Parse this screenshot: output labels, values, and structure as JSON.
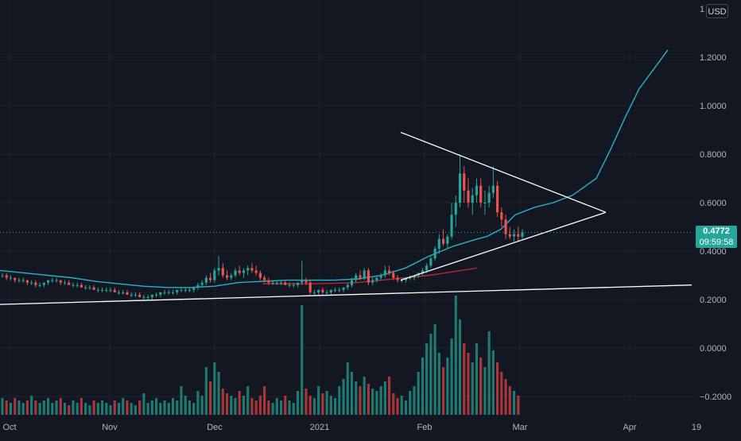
{
  "scale": {
    "currency": "USD",
    "top_partial": "1"
  },
  "price_label": {
    "price": "0.4772",
    "countdown": "09:59:58"
  },
  "chart_data": {
    "type": "candlestick",
    "y_ticks": [
      "1.2000",
      "1.0000",
      "0.8000",
      "0.6000",
      "0.4000",
      "0.2000",
      "0.0000",
      "−0.2000"
    ],
    "y_tick_values": [
      1.2,
      1.0,
      0.8,
      0.6,
      0.4,
      0.2,
      0.0,
      -0.2
    ],
    "x_ticks": [
      "Oct",
      "Nov",
      "Dec",
      "2021",
      "Feb",
      "Mar",
      "Apr",
      "19"
    ],
    "last_price": 0.4772,
    "ylim": [
      -0.25,
      1.35
    ],
    "grid": true,
    "colors": {
      "background": "#131722",
      "grid": "#1f2330",
      "up": "#26a69a",
      "down": "#ef5350",
      "ma_fast": "#2ab0c9",
      "ma_slow": "#b22833",
      "trendline": "#ffffff",
      "volume_up": "#1f7a70",
      "volume_down": "#a8373a",
      "price_line": "#26a69a"
    },
    "candles": [
      [
        0.3,
        0.31,
        0.29,
        0.3
      ],
      [
        0.3,
        0.31,
        0.28,
        0.29
      ],
      [
        0.29,
        0.3,
        0.28,
        0.29
      ],
      [
        0.29,
        0.29,
        0.27,
        0.28
      ],
      [
        0.28,
        0.29,
        0.27,
        0.28
      ],
      [
        0.28,
        0.29,
        0.27,
        0.28
      ],
      [
        0.28,
        0.28,
        0.26,
        0.27
      ],
      [
        0.27,
        0.28,
        0.26,
        0.27
      ],
      [
        0.27,
        0.28,
        0.25,
        0.26
      ],
      [
        0.26,
        0.27,
        0.25,
        0.26
      ],
      [
        0.26,
        0.27,
        0.25,
        0.27
      ],
      [
        0.27,
        0.28,
        0.26,
        0.28
      ],
      [
        0.28,
        0.29,
        0.27,
        0.28
      ],
      [
        0.28,
        0.29,
        0.27,
        0.28
      ],
      [
        0.28,
        0.28,
        0.26,
        0.27
      ],
      [
        0.27,
        0.28,
        0.26,
        0.27
      ],
      [
        0.27,
        0.28,
        0.26,
        0.26
      ],
      [
        0.26,
        0.27,
        0.25,
        0.26
      ],
      [
        0.26,
        0.27,
        0.25,
        0.26
      ],
      [
        0.26,
        0.27,
        0.25,
        0.25
      ],
      [
        0.25,
        0.26,
        0.24,
        0.25
      ],
      [
        0.25,
        0.26,
        0.24,
        0.25
      ],
      [
        0.25,
        0.26,
        0.24,
        0.24
      ],
      [
        0.24,
        0.25,
        0.23,
        0.24
      ],
      [
        0.24,
        0.25,
        0.23,
        0.24
      ],
      [
        0.24,
        0.25,
        0.23,
        0.24
      ],
      [
        0.24,
        0.25,
        0.23,
        0.24
      ],
      [
        0.24,
        0.25,
        0.23,
        0.23
      ],
      [
        0.23,
        0.24,
        0.22,
        0.23
      ],
      [
        0.23,
        0.24,
        0.22,
        0.23
      ],
      [
        0.23,
        0.24,
        0.22,
        0.22
      ],
      [
        0.22,
        0.23,
        0.21,
        0.22
      ],
      [
        0.22,
        0.23,
        0.21,
        0.22
      ],
      [
        0.22,
        0.23,
        0.21,
        0.21
      ],
      [
        0.21,
        0.22,
        0.2,
        0.21
      ],
      [
        0.21,
        0.22,
        0.2,
        0.21
      ],
      [
        0.21,
        0.22,
        0.2,
        0.22
      ],
      [
        0.22,
        0.23,
        0.21,
        0.22
      ],
      [
        0.22,
        0.23,
        0.21,
        0.23
      ],
      [
        0.23,
        0.24,
        0.22,
        0.23
      ],
      [
        0.23,
        0.24,
        0.22,
        0.23
      ],
      [
        0.23,
        0.24,
        0.22,
        0.23
      ],
      [
        0.23,
        0.24,
        0.22,
        0.24
      ],
      [
        0.24,
        0.25,
        0.23,
        0.24
      ],
      [
        0.24,
        0.25,
        0.23,
        0.24
      ],
      [
        0.24,
        0.25,
        0.23,
        0.24
      ],
      [
        0.24,
        0.25,
        0.23,
        0.25
      ],
      [
        0.25,
        0.27,
        0.24,
        0.26
      ],
      [
        0.26,
        0.28,
        0.25,
        0.27
      ],
      [
        0.27,
        0.3,
        0.26,
        0.29
      ],
      [
        0.29,
        0.31,
        0.27,
        0.28
      ],
      [
        0.28,
        0.33,
        0.27,
        0.32
      ],
      [
        0.32,
        0.38,
        0.3,
        0.33
      ],
      [
        0.33,
        0.35,
        0.29,
        0.3
      ],
      [
        0.3,
        0.32,
        0.28,
        0.29
      ],
      [
        0.29,
        0.31,
        0.28,
        0.3
      ],
      [
        0.3,
        0.33,
        0.29,
        0.32
      ],
      [
        0.32,
        0.34,
        0.3,
        0.31
      ],
      [
        0.31,
        0.33,
        0.29,
        0.32
      ],
      [
        0.32,
        0.34,
        0.3,
        0.33
      ],
      [
        0.33,
        0.35,
        0.31,
        0.32
      ],
      [
        0.32,
        0.34,
        0.3,
        0.31
      ],
      [
        0.31,
        0.32,
        0.28,
        0.29
      ],
      [
        0.29,
        0.3,
        0.27,
        0.28
      ],
      [
        0.28,
        0.29,
        0.26,
        0.27
      ],
      [
        0.27,
        0.28,
        0.26,
        0.27
      ],
      [
        0.27,
        0.28,
        0.26,
        0.27
      ],
      [
        0.27,
        0.28,
        0.26,
        0.27
      ],
      [
        0.27,
        0.28,
        0.26,
        0.26
      ],
      [
        0.26,
        0.27,
        0.25,
        0.26
      ],
      [
        0.26,
        0.27,
        0.25,
        0.26
      ],
      [
        0.26,
        0.27,
        0.25,
        0.27
      ],
      [
        0.27,
        0.36,
        0.26,
        0.28
      ],
      [
        0.28,
        0.29,
        0.26,
        0.27
      ],
      [
        0.27,
        0.28,
        0.22,
        0.23
      ],
      [
        0.23,
        0.24,
        0.22,
        0.23
      ],
      [
        0.23,
        0.24,
        0.22,
        0.24
      ],
      [
        0.24,
        0.25,
        0.22,
        0.23
      ],
      [
        0.23,
        0.24,
        0.22,
        0.23
      ],
      [
        0.23,
        0.24,
        0.22,
        0.24
      ],
      [
        0.24,
        0.25,
        0.23,
        0.24
      ],
      [
        0.24,
        0.25,
        0.23,
        0.24
      ],
      [
        0.24,
        0.25,
        0.23,
        0.25
      ],
      [
        0.25,
        0.27,
        0.24,
        0.26
      ],
      [
        0.26,
        0.29,
        0.25,
        0.28
      ],
      [
        0.28,
        0.31,
        0.27,
        0.3
      ],
      [
        0.3,
        0.32,
        0.28,
        0.29
      ],
      [
        0.29,
        0.33,
        0.28,
        0.32
      ],
      [
        0.32,
        0.33,
        0.26,
        0.27
      ],
      [
        0.27,
        0.29,
        0.26,
        0.28
      ],
      [
        0.28,
        0.3,
        0.27,
        0.29
      ],
      [
        0.29,
        0.31,
        0.28,
        0.3
      ],
      [
        0.3,
        0.34,
        0.29,
        0.32
      ],
      [
        0.32,
        0.34,
        0.3,
        0.31
      ],
      [
        0.31,
        0.32,
        0.28,
        0.29
      ],
      [
        0.29,
        0.3,
        0.27,
        0.28
      ],
      [
        0.28,
        0.29,
        0.27,
        0.28
      ],
      [
        0.28,
        0.29,
        0.27,
        0.29
      ],
      [
        0.29,
        0.3,
        0.28,
        0.29
      ],
      [
        0.29,
        0.3,
        0.28,
        0.3
      ],
      [
        0.3,
        0.31,
        0.29,
        0.31
      ],
      [
        0.31,
        0.33,
        0.3,
        0.32
      ],
      [
        0.32,
        0.35,
        0.31,
        0.34
      ],
      [
        0.34,
        0.38,
        0.33,
        0.37
      ],
      [
        0.37,
        0.42,
        0.36,
        0.41
      ],
      [
        0.41,
        0.47,
        0.39,
        0.45
      ],
      [
        0.45,
        0.49,
        0.42,
        0.43
      ],
      [
        0.43,
        0.47,
        0.41,
        0.46
      ],
      [
        0.46,
        0.6,
        0.45,
        0.55
      ],
      [
        0.55,
        0.63,
        0.5,
        0.6
      ],
      [
        0.6,
        0.8,
        0.58,
        0.72
      ],
      [
        0.72,
        0.75,
        0.6,
        0.65
      ],
      [
        0.65,
        0.7,
        0.58,
        0.6
      ],
      [
        0.6,
        0.66,
        0.55,
        0.63
      ],
      [
        0.63,
        0.7,
        0.6,
        0.67
      ],
      [
        0.67,
        0.7,
        0.58,
        0.6
      ],
      [
        0.6,
        0.65,
        0.55,
        0.6
      ],
      [
        0.6,
        0.67,
        0.58,
        0.64
      ],
      [
        0.64,
        0.75,
        0.62,
        0.67
      ],
      [
        0.67,
        0.69,
        0.54,
        0.56
      ],
      [
        0.56,
        0.58,
        0.5,
        0.53
      ],
      [
        0.53,
        0.55,
        0.45,
        0.47
      ],
      [
        0.47,
        0.5,
        0.45,
        0.46
      ],
      [
        0.46,
        0.49,
        0.44,
        0.47
      ],
      [
        0.47,
        0.5,
        0.44,
        0.46
      ],
      [
        0.46,
        0.49,
        0.45,
        0.477
      ]
    ],
    "volume": [
      0.07,
      0.06,
      0.05,
      0.07,
      0.06,
      0.05,
      0.06,
      0.08,
      0.06,
      0.05,
      0.06,
      0.07,
      0.05,
      0.06,
      0.07,
      0.05,
      0.04,
      0.06,
      0.05,
      0.07,
      0.05,
      0.04,
      0.06,
      0.05,
      0.06,
      0.05,
      0.04,
      0.06,
      0.05,
      0.07,
      0.06,
      0.05,
      0.04,
      0.06,
      0.09,
      0.05,
      0.06,
      0.07,
      0.05,
      0.06,
      0.05,
      0.07,
      0.06,
      0.12,
      0.08,
      0.06,
      0.05,
      0.1,
      0.08,
      0.2,
      0.14,
      0.22,
      0.18,
      0.11,
      0.09,
      0.08,
      0.07,
      0.1,
      0.08,
      0.12,
      0.07,
      0.06,
      0.08,
      0.12,
      0.06,
      0.05,
      0.07,
      0.06,
      0.08,
      0.06,
      0.05,
      0.1,
      0.46,
      0.11,
      0.08,
      0.07,
      0.12,
      0.09,
      0.1,
      0.08,
      0.07,
      0.12,
      0.15,
      0.22,
      0.18,
      0.14,
      0.12,
      0.16,
      0.13,
      0.11,
      0.1,
      0.12,
      0.14,
      0.16,
      0.09,
      0.07,
      0.08,
      0.06,
      0.1,
      0.12,
      0.18,
      0.24,
      0.3,
      0.34,
      0.38,
      0.26,
      0.2,
      0.24,
      0.32,
      0.5,
      0.4,
      0.3,
      0.26,
      0.22,
      0.3,
      0.24,
      0.2,
      0.35,
      0.27,
      0.22,
      0.18,
      0.15,
      0.12,
      0.1,
      0.08
    ],
    "ma_fast": [
      [
        0.0,
        0.32
      ],
      [
        0.05,
        0.31
      ],
      [
        0.1,
        0.3
      ],
      [
        0.15,
        0.29
      ],
      [
        0.2,
        0.275
      ],
      [
        0.25,
        0.265
      ],
      [
        0.3,
        0.255
      ],
      [
        0.35,
        0.25
      ],
      [
        0.4,
        0.25
      ],
      [
        0.45,
        0.255
      ],
      [
        0.5,
        0.27
      ],
      [
        0.55,
        0.275
      ],
      [
        0.6,
        0.28
      ],
      [
        0.65,
        0.28
      ],
      [
        0.7,
        0.28
      ],
      [
        0.75,
        0.285
      ],
      [
        0.8,
        0.3
      ],
      [
        0.85,
        0.33
      ],
      [
        0.9,
        0.38
      ],
      [
        0.95,
        0.42
      ],
      [
        1.0,
        0.45
      ],
      [
        1.02,
        0.46
      ],
      [
        1.05,
        0.49
      ],
      [
        1.08,
        0.55
      ],
      [
        1.12,
        0.58
      ],
      [
        1.16,
        0.6
      ],
      [
        1.2,
        0.63
      ],
      [
        1.25,
        0.7
      ],
      [
        1.28,
        0.82
      ],
      [
        1.31,
        0.95
      ],
      [
        1.34,
        1.07
      ],
      [
        1.37,
        1.15
      ],
      [
        1.4,
        1.23
      ]
    ],
    "ma_slow": [
      [
        0.55,
        0.265
      ],
      [
        0.6,
        0.265
      ],
      [
        0.65,
        0.265
      ],
      [
        0.7,
        0.267
      ],
      [
        0.75,
        0.27
      ],
      [
        0.8,
        0.28
      ],
      [
        0.85,
        0.29
      ],
      [
        0.9,
        0.3
      ],
      [
        0.95,
        0.315
      ],
      [
        1.0,
        0.33
      ]
    ],
    "trendlines": [
      {
        "from": [
          0.0,
          0.18
        ],
        "to": [
          1.45,
          0.26
        ]
      },
      {
        "from": [
          0.84,
          0.28
        ],
        "to": [
          1.27,
          0.56
        ]
      },
      {
        "from": [
          0.84,
          0.89
        ],
        "to": [
          1.27,
          0.56
        ]
      }
    ],
    "x_tick_positions": [
      0.02,
      0.23,
      0.45,
      0.67,
      0.89,
      1.09,
      1.32,
      1.46
    ]
  }
}
